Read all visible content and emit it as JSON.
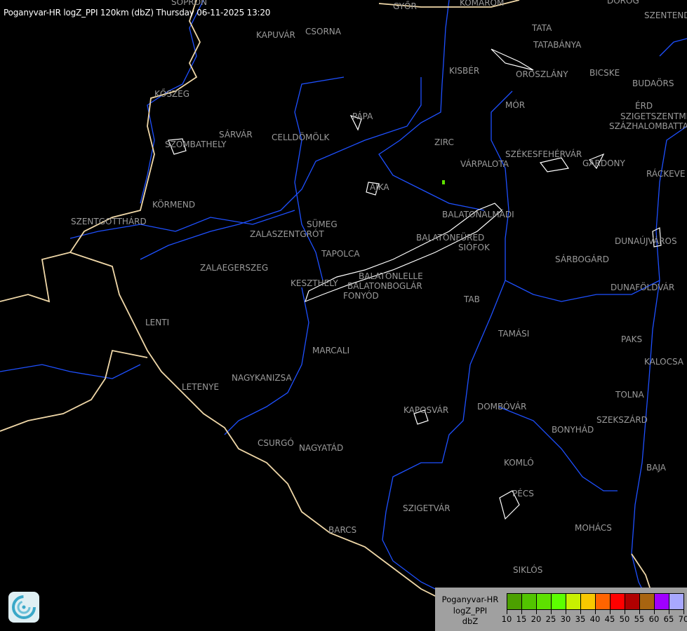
{
  "title": "Poganyvar-HR logZ_PPI 120km (dbZ) Thursday 06-11-2025 13:20",
  "cities": [
    "SOPRON",
    "GYŐR",
    "KOMÁROM",
    "DOROG",
    "SZENTENDRE",
    "TATA",
    "TATABÁNYA",
    "KISBÉR",
    "OROSZLÁNY",
    "BICSKE",
    "BUDAÖRS",
    "ÉRD",
    "SZIGETSZENTMIKLÓS",
    "SZÁZHALOMBATTA",
    "MÓR",
    "ZIRC",
    "VÁRPALOTA",
    "SZÉKESFEHÉRVÁR",
    "GÁRDONY",
    "RÁCKEVE",
    "KAPUVÁR",
    "CSORNA",
    "KŐSZEG",
    "PÁPA",
    "SÁRVÁR",
    "CELLDÖMÖLK",
    "SZOMBATHELY",
    "AJKA",
    "KÖRMEND",
    "SZENTGOTTHÁRD",
    "BALATONALMÁDI",
    "SÜMEG",
    "ZALASZENTGRÓT",
    "BALATONFÜRED",
    "SIÓFOK",
    "TAPOLCA",
    "DUNAÚJVÁROS",
    "ZALAEGERSZEG",
    "SÁRBOGÁRD",
    "KESZTHELY",
    "BALATONLELLE",
    "BALATONBOGLÁR",
    "FONYÓD",
    "DUNAFÖLDVÁR",
    "TAB",
    "LENTI",
    "TAMÁSI",
    "PAKS",
    "MARCALI",
    "KALOCSA",
    "LETENYE",
    "NAGYKANIZSA",
    "TOLNA",
    "KAPOSVÁR",
    "DOMBÓVÁR",
    "SZEKSZÁRD",
    "BONYHÁD",
    "CSURGÓ",
    "NAGYATÁD",
    "KOMLÓ",
    "BAJA",
    "PÉCS",
    "SZIGETVÁR",
    "MOHÁCS",
    "BARCS",
    "SIKLÓS"
  ],
  "legend": {
    "lines": [
      "Poganyvar-HR",
      "logZ_PPI",
      "dbZ"
    ],
    "ticks": [
      "10",
      "15",
      "20",
      "25",
      "30",
      "35",
      "40",
      "45",
      "50",
      "55",
      "60",
      "65",
      "70"
    ],
    "colors": [
      "#4ca000",
      "#52c400",
      "#5ee000",
      "#5cff00",
      "#c8f000",
      "#f8c800",
      "#ff6400",
      "#ff0000",
      "#b00000",
      "#a86410",
      "#a000ff",
      "#a8a8ff"
    ]
  },
  "map_colors": {
    "background": "#000000",
    "rivers": "#1e50ff",
    "borders": "#f0d8a8",
    "urban_outlines": "#ffffff",
    "labels": "#9a9a9a"
  }
}
